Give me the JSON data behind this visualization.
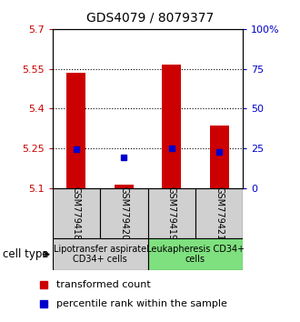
{
  "title": "GDS4079 / 8079377",
  "samples": [
    "GSM779418",
    "GSM779420",
    "GSM779419",
    "GSM779421"
  ],
  "red_values": [
    5.535,
    5.115,
    5.565,
    5.335
  ],
  "blue_values": [
    5.248,
    5.218,
    5.252,
    5.238
  ],
  "ylim_left": [
    5.1,
    5.7
  ],
  "ylim_right": [
    0,
    100
  ],
  "left_ticks": [
    5.1,
    5.25,
    5.4,
    5.55,
    5.7
  ],
  "right_ticks": [
    0,
    25,
    50,
    75,
    100
  ],
  "right_tick_labels": [
    "0",
    "25",
    "50",
    "75",
    "100%"
  ],
  "grid_values": [
    5.25,
    5.4,
    5.55
  ],
  "bar_bottom": 5.1,
  "cell_type_label": "cell type",
  "group1_label": "Lipotransfer aspirate\nCD34+ cells",
  "group2_label": "Leukapheresis CD34+\ncells",
  "group1_color": "#d0d0d0",
  "group2_color": "#7fe07f",
  "legend_red": "transformed count",
  "legend_blue": "percentile rank within the sample",
  "red_color": "#cc0000",
  "blue_color": "#0000cc",
  "bar_width": 0.4,
  "title_fontsize": 10,
  "tick_fontsize": 8,
  "sample_fontsize": 7,
  "group_fontsize": 7,
  "legend_fontsize": 8
}
